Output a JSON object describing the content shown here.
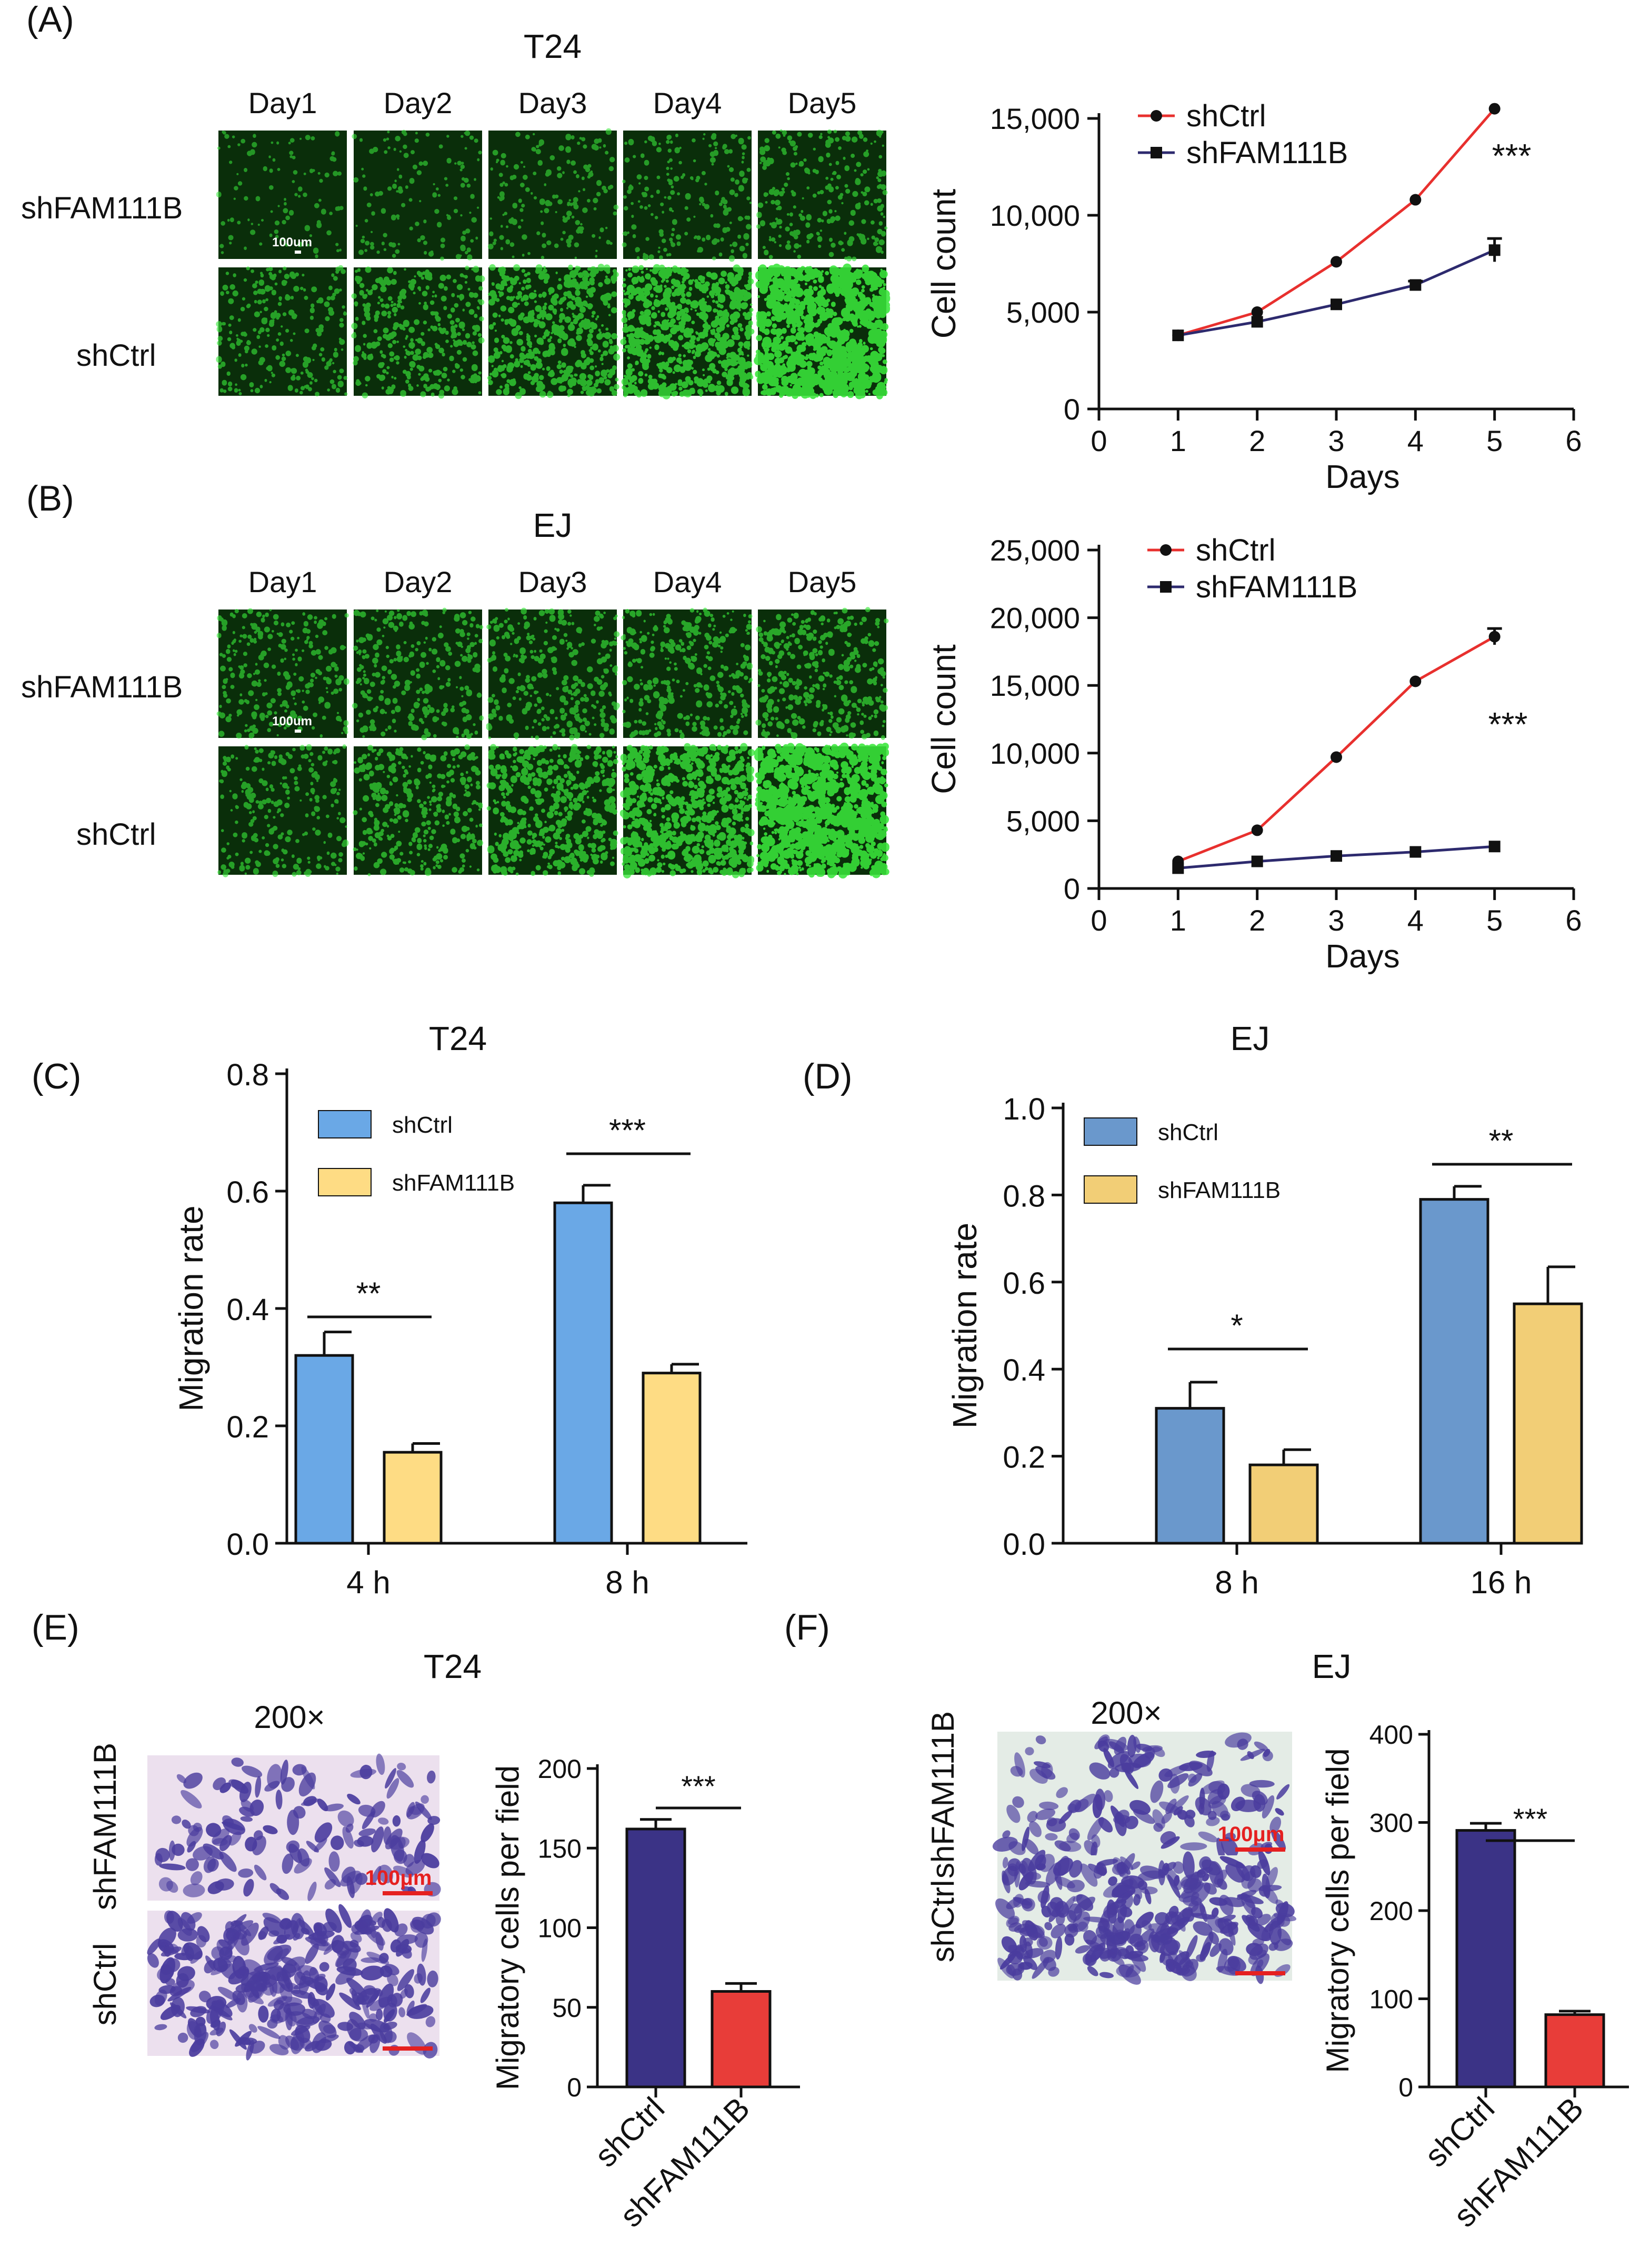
{
  "panels": {
    "A": {
      "letter": "(A)",
      "title": "T24",
      "days": [
        "Day1",
        "Day2",
        "Day3",
        "Day4",
        "Day5"
      ],
      "rows": [
        "shFAM111B",
        "shCtrl"
      ],
      "scalebar": "100um"
    },
    "B": {
      "letter": "(B)",
      "title": "EJ",
      "days": [
        "Day1",
        "Day2",
        "Day3",
        "Day4",
        "Day5"
      ],
      "rows": [
        "shFAM111B",
        "shCtrl"
      ],
      "scalebar": "100um"
    },
    "C": {
      "letter": "(C)"
    },
    "D": {
      "letter": "(D)"
    },
    "E": {
      "letter": "(E)",
      "title": "T24",
      "mag": "200×",
      "rows": [
        "shFAM111B",
        "shCtrl"
      ],
      "scalebar": "100μm"
    },
    "F": {
      "letter": "(F)",
      "title": "EJ",
      "mag": "200×",
      "rows": [
        "shFAM111B",
        "shCtrl"
      ],
      "scalebar": "100μm"
    }
  },
  "colors": {
    "shCtrl_line": "#e8302e",
    "shFAM111B_line": "#2d2a6e",
    "C_ctrl": "#6aa8e6",
    "C_fam": "#fedc84",
    "D_ctrl": "#6a98cc",
    "D_fam": "#f2ce76",
    "E_ctrl": "#3b3386",
    "E_fam": "#e83d39",
    "fluor_bg": "#0a2e0a",
    "fluor_dot": "#39e63a",
    "stain_bg": "#e8dcef",
    "stain_cell": "#4a3c9e"
  },
  "chart_data": [
    {
      "id": "A-chart",
      "type": "line",
      "title": "",
      "xlabel": "Days",
      "ylabel": "Cell count",
      "xlim": [
        0,
        6
      ],
      "ylim": [
        0,
        15000
      ],
      "xticks": [
        0,
        1,
        2,
        3,
        4,
        5,
        6
      ],
      "xtick_labels": [
        "0",
        "1",
        "2",
        "3",
        "4",
        "5",
        "6"
      ],
      "yticks": [
        0,
        5000,
        10000,
        15000
      ],
      "ytick_labels": [
        "0",
        "5,000",
        "10,000",
        "15,000"
      ],
      "legend_position": "top-center",
      "annotation": "***",
      "series": [
        {
          "name": "shCtrl",
          "x": [
            1,
            2,
            3,
            4,
            5
          ],
          "y": [
            3800,
            5000,
            7600,
            10800,
            15500
          ],
          "err": [
            0,
            0,
            0,
            0,
            0
          ]
        },
        {
          "name": "shFAM111B",
          "x": [
            1,
            2,
            3,
            4,
            5
          ],
          "y": [
            3800,
            4500,
            5400,
            6400,
            8200
          ],
          "err": [
            0,
            0,
            0,
            200,
            600
          ]
        }
      ]
    },
    {
      "id": "B-chart",
      "type": "line",
      "title": "",
      "xlabel": "Days",
      "ylabel": "Cell count",
      "xlim": [
        0,
        6
      ],
      "ylim": [
        0,
        25000
      ],
      "xticks": [
        0,
        1,
        2,
        3,
        4,
        5,
        6
      ],
      "xtick_labels": [
        "0",
        "1",
        "2",
        "3",
        "4",
        "5",
        "6"
      ],
      "yticks": [
        0,
        5000,
        10000,
        15000,
        20000,
        25000
      ],
      "ytick_labels": [
        "0",
        "5,000",
        "10,000",
        "15,000",
        "20,000",
        "25,000"
      ],
      "legend_position": "top-center",
      "annotation": "***",
      "series": [
        {
          "name": "shCtrl",
          "x": [
            1,
            2,
            3,
            4,
            5
          ],
          "y": [
            2000,
            4300,
            9700,
            15300,
            18600
          ],
          "err": [
            0,
            0,
            0,
            0,
            600
          ]
        },
        {
          "name": "shFAM111B",
          "x": [
            1,
            2,
            3,
            4,
            5
          ],
          "y": [
            1500,
            2000,
            2400,
            2700,
            3100
          ],
          "err": [
            0,
            0,
            0,
            0,
            0
          ]
        }
      ]
    },
    {
      "id": "C-chart",
      "type": "bar",
      "title": "T24",
      "xlabel": "",
      "ylabel": "Migration rate",
      "categories": [
        "4 h",
        "8 h"
      ],
      "ylim": [
        0,
        0.8
      ],
      "yticks": [
        0,
        0.2,
        0.4,
        0.6,
        0.8
      ],
      "ytick_labels": [
        "0.0",
        "0.2",
        "0.4",
        "0.6",
        "0.8"
      ],
      "legend_position": "top-left",
      "significance": [
        "**",
        "***"
      ],
      "series": [
        {
          "name": "shCtrl",
          "values": [
            0.32,
            0.58
          ],
          "err": [
            0.04,
            0.03
          ]
        },
        {
          "name": "shFAM111B",
          "values": [
            0.155,
            0.29
          ],
          "err": [
            0.015,
            0.015
          ]
        }
      ]
    },
    {
      "id": "D-chart",
      "type": "bar",
      "title": "EJ",
      "xlabel": "",
      "ylabel": "Migration rate",
      "categories": [
        "8 h",
        "16 h"
      ],
      "ylim": [
        0,
        1.0
      ],
      "yticks": [
        0,
        0.2,
        0.4,
        0.6,
        0.8,
        1.0
      ],
      "ytick_labels": [
        "0.0",
        "0.2",
        "0.4",
        "0.6",
        "0.8",
        "1.0"
      ],
      "legend_position": "top-left",
      "significance": [
        "*",
        "**"
      ],
      "series": [
        {
          "name": "shCtrl",
          "values": [
            0.31,
            0.79
          ],
          "err": [
            0.06,
            0.03
          ]
        },
        {
          "name": "shFAM111B",
          "values": [
            0.18,
            0.55
          ],
          "err": [
            0.035,
            0.085
          ]
        }
      ]
    },
    {
      "id": "E-chart",
      "type": "bar",
      "title": "",
      "xlabel": "",
      "ylabel": "Migratory cells per field",
      "categories": [
        "shCtrl",
        "shFAM111B"
      ],
      "ylim": [
        0,
        200
      ],
      "yticks": [
        0,
        50,
        100,
        150,
        200
      ],
      "ytick_labels": [
        "0",
        "50",
        "100",
        "150",
        "200"
      ],
      "significance": [
        "***"
      ],
      "values": [
        162,
        60
      ],
      "err": [
        6,
        5
      ]
    },
    {
      "id": "F-chart",
      "type": "bar",
      "title": "",
      "xlabel": "",
      "ylabel": "Migratory cells per field",
      "categories": [
        "shCtrl",
        "shFAM111B"
      ],
      "ylim": [
        0,
        400
      ],
      "yticks": [
        0,
        100,
        200,
        300,
        400
      ],
      "ytick_labels": [
        "0",
        "100",
        "200",
        "300",
        "400"
      ],
      "significance": [
        "***"
      ],
      "values": [
        291,
        82
      ],
      "err": [
        8,
        4
      ]
    }
  ]
}
